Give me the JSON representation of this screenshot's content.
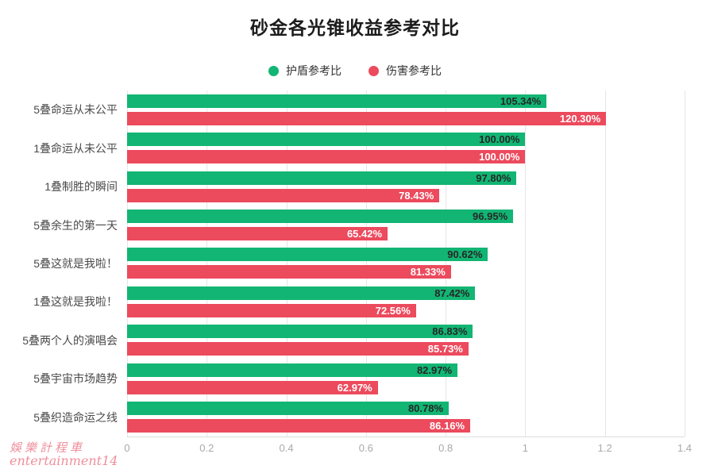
{
  "title": "砂金各光锥收益参考对比",
  "legend": [
    {
      "label": "护盾参考比",
      "color": "#12b573"
    },
    {
      "label": "伤害参考比",
      "color": "#ec4a5d"
    }
  ],
  "watermark": {
    "line1": "娛樂計程車",
    "line2": "entertainment14"
  },
  "chart_data": {
    "type": "bar",
    "orientation": "horizontal",
    "title": "砂金各光锥收益参考对比",
    "categories": [
      "5叠命运从未公平",
      "1叠命运从未公平",
      "1叠制胜的瞬间",
      "5叠余生的第一天",
      "5叠这就是我啦！",
      "1叠这就是我啦！",
      "5叠两个人的演唱会",
      "5叠宇宙市场趋势",
      "5叠织造命运之线"
    ],
    "series": [
      {
        "name": "护盾参考比",
        "color": "#12b573",
        "label_color": "#272727",
        "values": [
          1.0534,
          1.0,
          0.978,
          0.9695,
          0.9062,
          0.8742,
          0.8683,
          0.8297,
          0.8078
        ],
        "labels": [
          "105.34%",
          "100.00%",
          "97.80%",
          "96.95%",
          "90.62%",
          "87.42%",
          "86.83%",
          "82.97%",
          "80.78%"
        ]
      },
      {
        "name": "伤害参考比",
        "color": "#ec4a5d",
        "label_color": "#ffffff",
        "values": [
          1.203,
          1.0,
          0.7843,
          0.6542,
          0.8133,
          0.7256,
          0.8573,
          0.6297,
          0.8616
        ],
        "labels": [
          "120.30%",
          "100.00%",
          "78.43%",
          "65.42%",
          "81.33%",
          "72.56%",
          "85.73%",
          "62.97%",
          "86.16%"
        ]
      }
    ],
    "xlim": [
      0,
      1.4
    ],
    "x_ticks": [
      0,
      0.2,
      0.4,
      0.6,
      0.8,
      1,
      1.2,
      1.4
    ],
    "x_tick_labels": [
      "0",
      "0.2",
      "0.4",
      "0.6",
      "0.8",
      "1",
      "1.2",
      "1.4"
    ],
    "grid": true,
    "legend_position": "top"
  }
}
